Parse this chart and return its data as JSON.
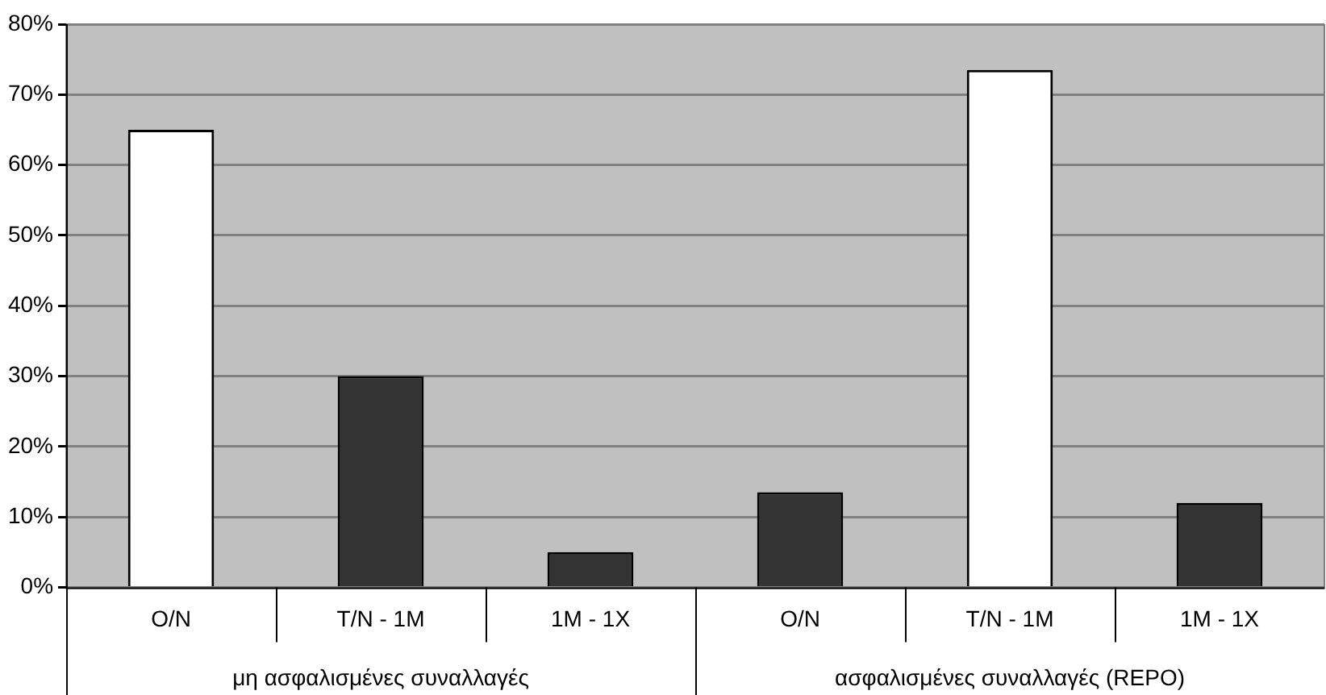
{
  "chart_data": {
    "type": "bar",
    "categories": [
      "O/N",
      "T/N - 1M",
      "1M - 1X",
      "O/N",
      "T/N - 1M",
      "1M - 1X"
    ],
    "values": [
      65,
      30,
      5,
      13.5,
      73.5,
      12
    ],
    "colors": [
      "#ffffff",
      "#333333",
      "#333333",
      "#333333",
      "#ffffff",
      "#333333"
    ],
    "ylim": [
      0,
      80
    ],
    "yticks": [
      {
        "value": 0,
        "label": "0%"
      },
      {
        "value": 10,
        "label": "10%"
      },
      {
        "value": 20,
        "label": "20%"
      },
      {
        "value": 30,
        "label": "30%"
      },
      {
        "value": 40,
        "label": "40%"
      },
      {
        "value": 50,
        "label": "50%"
      },
      {
        "value": 60,
        "label": "60%"
      },
      {
        "value": 70,
        "label": "70%"
      },
      {
        "value": 80,
        "label": "80%"
      }
    ],
    "annotations": [
      "μη ασφαλισμένες συναλλαγές",
      "ασφαλισμένες συναλλαγές (REPO)"
    ],
    "grid": "y",
    "legend": false
  }
}
